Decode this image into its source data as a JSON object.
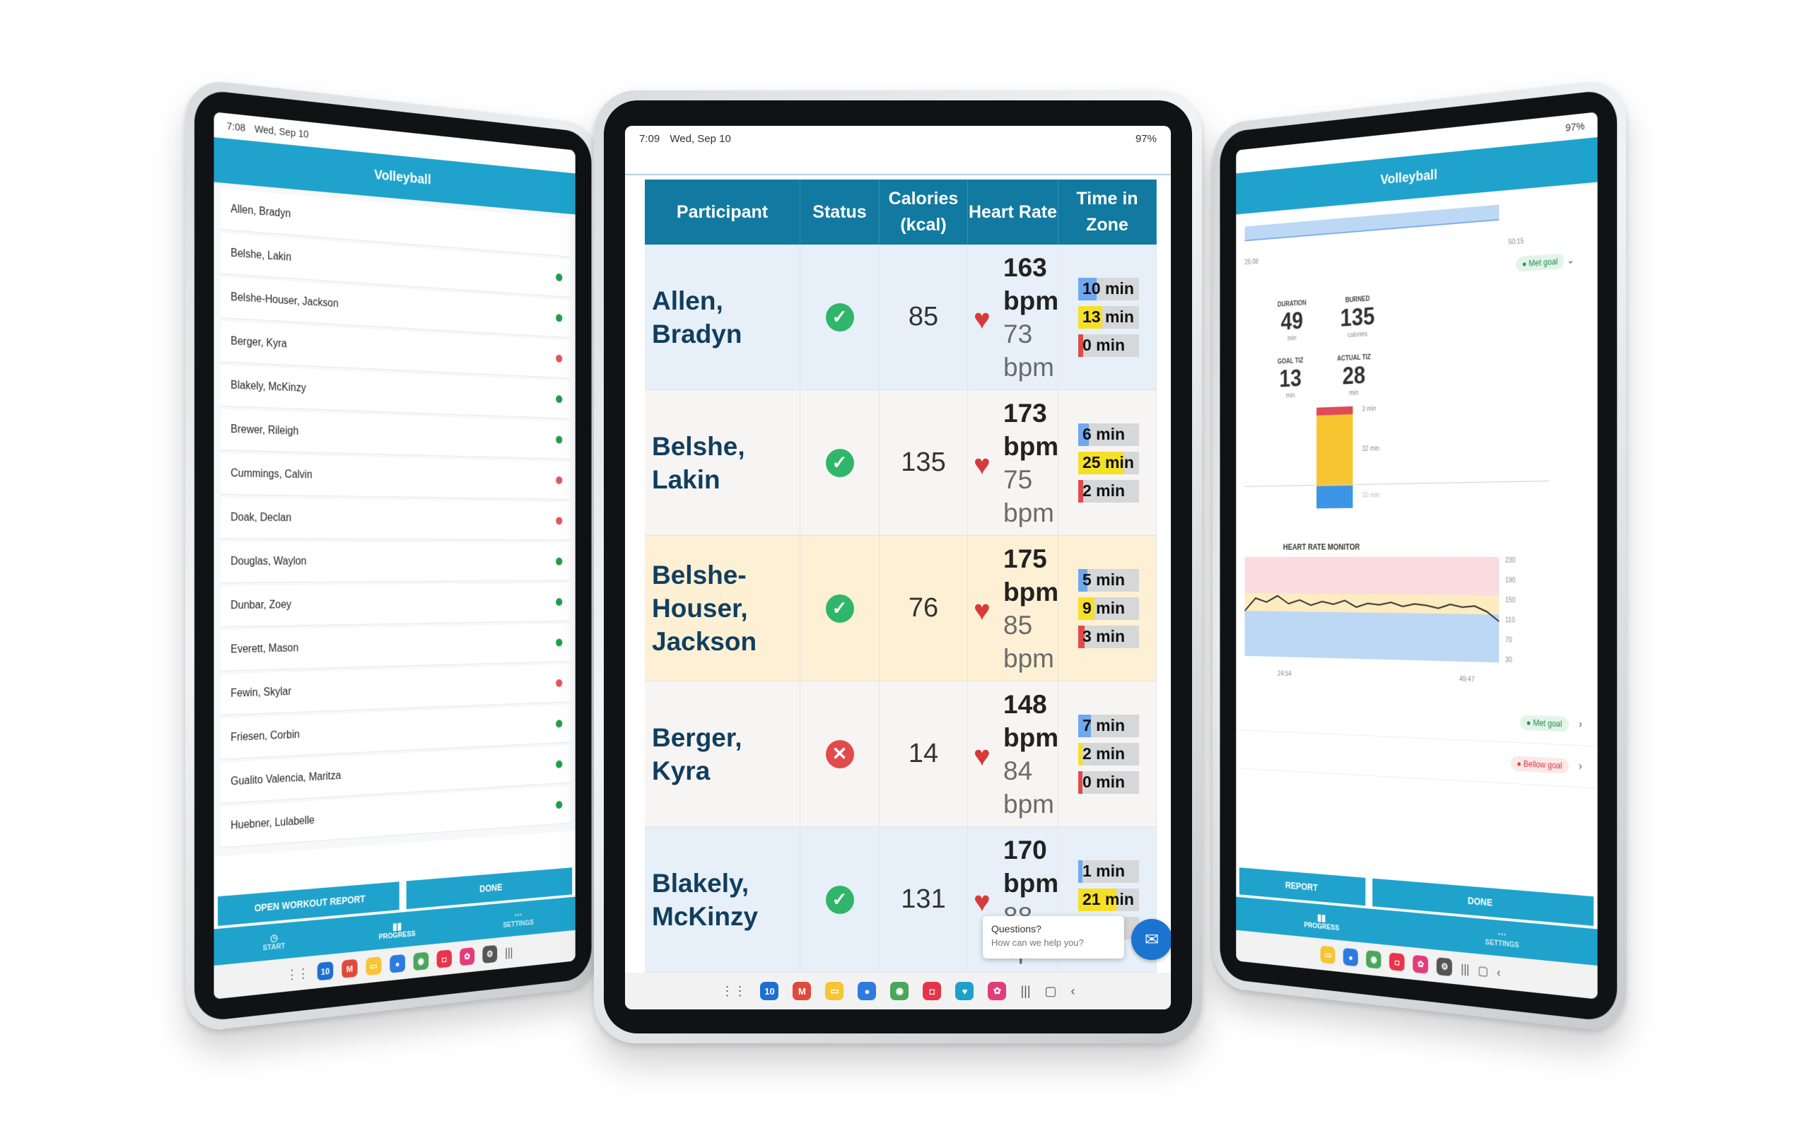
{
  "status_bar": {
    "left": {
      "time": "7:08",
      "date": "Wed, Sep 10"
    },
    "center": {
      "time": "7:09",
      "date": "Wed, Sep 10",
      "battery": "97%"
    },
    "right": {
      "battery": "97%"
    }
  },
  "left_tablet": {
    "title": "Volleyball",
    "participants": [
      {
        "name": "Allen, Bradyn",
        "indicator": "none"
      },
      {
        "name": "Belshe, Lakin",
        "indicator": "green"
      },
      {
        "name": "Belshe-Houser, Jackson",
        "indicator": "green"
      },
      {
        "name": "Berger, Kyra",
        "indicator": "red"
      },
      {
        "name": "Blakely, McKinzy",
        "indicator": "green"
      },
      {
        "name": "Brewer, Rileigh",
        "indicator": "green"
      },
      {
        "name": "Cummings, Calvin",
        "indicator": "red"
      },
      {
        "name": "Doak, Declan",
        "indicator": "red"
      },
      {
        "name": "Douglas, Waylon",
        "indicator": "green"
      },
      {
        "name": "Dunbar, Zoey",
        "indicator": "green"
      },
      {
        "name": "Everett, Mason",
        "indicator": "green"
      },
      {
        "name": "Fewin, Skylar",
        "indicator": "red"
      },
      {
        "name": "Friesen, Corbin",
        "indicator": "green"
      },
      {
        "name": "Gualito Valencia, Maritza",
        "indicator": "green"
      },
      {
        "name": "Huebner, Lulabelle",
        "indicator": "green"
      }
    ],
    "buttons": {
      "open_report": "OPEN WORKOUT REPORT",
      "done": "DONE"
    },
    "nav": {
      "start": "START",
      "progress": "PROGRESS",
      "settings": "SETTINGS"
    }
  },
  "center_tablet": {
    "columns": [
      "Participant",
      "Status",
      "Calories (kcal)",
      "Heart Rate",
      "Time in Zone"
    ],
    "rows": [
      {
        "name": "Allen, Bradyn",
        "status": "ok",
        "calories": "85",
        "hr_current": "163",
        "hr_avg": "73",
        "unit": "bpm",
        "row_style": "blue",
        "zones": [
          {
            "label": "10 min",
            "color": "blue",
            "fill": 0.3
          },
          {
            "label": "13 min",
            "color": "yellow",
            "fill": 0.4
          },
          {
            "label": "0 min",
            "color": "red",
            "fill": 0.08
          }
        ]
      },
      {
        "name": "Belshe, Lakin",
        "status": "ok",
        "calories": "135",
        "hr_current": "173",
        "hr_avg": "75",
        "unit": "bpm",
        "row_style": "gray",
        "zones": [
          {
            "label": "6 min",
            "color": "blue",
            "fill": 0.18
          },
          {
            "label": "25 min",
            "color": "yellow",
            "fill": 0.75
          },
          {
            "label": "2 min",
            "color": "red",
            "fill": 0.08
          }
        ]
      },
      {
        "name": "Belshe-Houser, Jackson",
        "status": "ok",
        "calories": "76",
        "hr_current": "175",
        "hr_avg": "85",
        "unit": "bpm",
        "row_style": "yellow",
        "zones": [
          {
            "label": "5 min",
            "color": "blue",
            "fill": 0.15
          },
          {
            "label": "9 min",
            "color": "yellow",
            "fill": 0.27
          },
          {
            "label": "3 min",
            "color": "red",
            "fill": 0.1
          }
        ]
      },
      {
        "name": "Berger, Kyra",
        "status": "bad",
        "calories": "14",
        "hr_current": "148",
        "hr_avg": "84",
        "unit": "bpm",
        "row_style": "gray",
        "zones": [
          {
            "label": "7 min",
            "color": "blue",
            "fill": 0.21
          },
          {
            "label": "2 min",
            "color": "yellow",
            "fill": 0.06
          },
          {
            "label": "0 min",
            "color": "red",
            "fill": 0.05
          }
        ]
      },
      {
        "name": "Blakely, McKinzy",
        "status": "ok",
        "calories": "131",
        "hr_current": "170",
        "hr_avg": "88",
        "unit": "bpm",
        "row_style": "blue",
        "zones": [
          {
            "label": "1 min",
            "color": "blue",
            "fill": 0.04
          },
          {
            "label": "21 min",
            "color": "yellow",
            "fill": 0.63
          },
          {
            "label": "1 min",
            "color": "red",
            "fill": 0.04
          }
        ]
      }
    ],
    "chat": {
      "title": "Questions?",
      "subtitle": "How can we help you?"
    }
  },
  "right_tablet": {
    "title": "Volleyball",
    "axis_top": {
      "left": "25:08",
      "right": "50:15",
      "value": "30"
    },
    "met_goal": "Met goal",
    "below_goal": "Bellow goal",
    "stats": {
      "duration": {
        "label": "DURATION",
        "value": "49",
        "unit": "min"
      },
      "burned": {
        "label": "BURNED",
        "value": "135",
        "unit": "calories"
      },
      "goal_tiz": {
        "label": "GOAL TIZ",
        "value": "13",
        "unit": "min"
      },
      "actual_tiz": {
        "label": "ACTUAL TIZ",
        "value": "28",
        "unit": "min"
      }
    },
    "bar_labels": {
      "red": "3 min",
      "yellow": "32 min",
      "blue": "10 min"
    },
    "hrm": {
      "title": "HEART RATE MONITOR",
      "y_ticks": [
        "230",
        "190",
        "150",
        "110",
        "70",
        "30"
      ],
      "x_start": "24:54",
      "x_end": "49:47"
    },
    "buttons": {
      "report": "REPORT",
      "done": "DONE"
    },
    "nav": {
      "progress": "PROGRESS",
      "settings": "SETTINGS"
    }
  }
}
